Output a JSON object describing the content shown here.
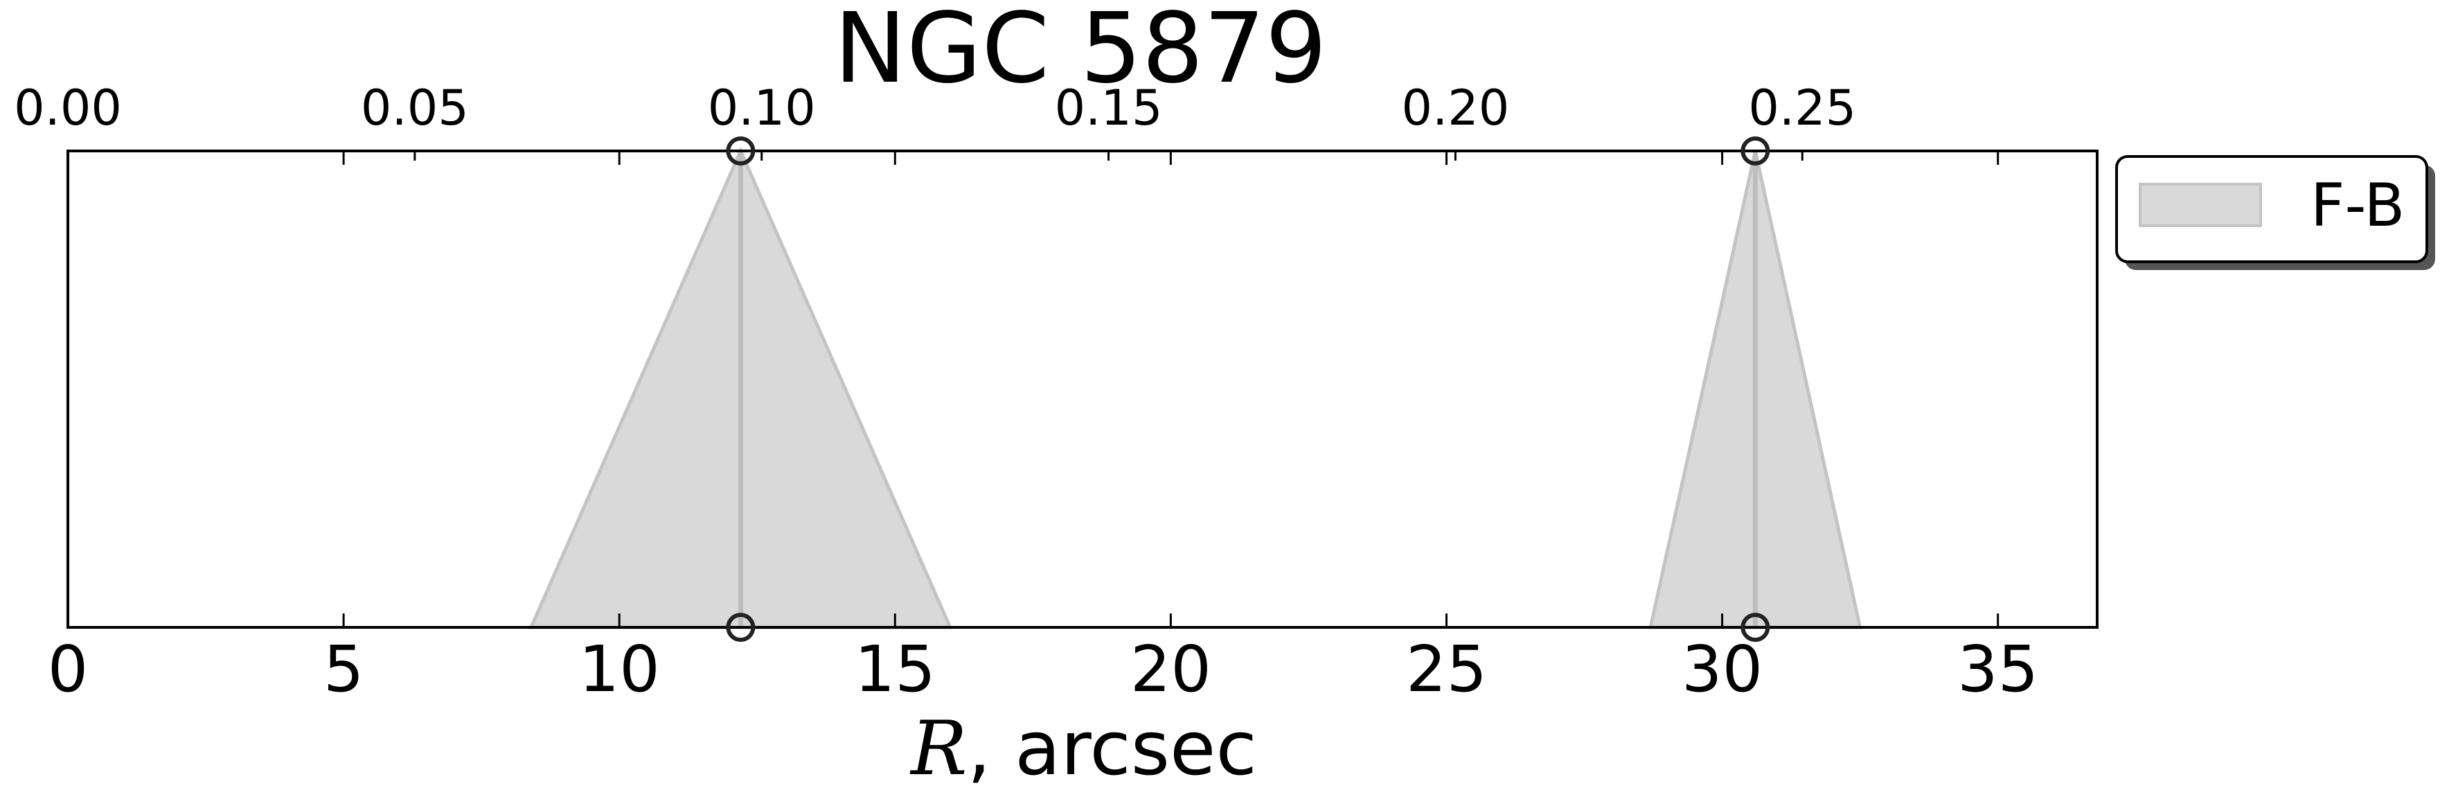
{
  "chart_data": {
    "type": "area",
    "title": "NGC 5879",
    "xlabel_var": "R",
    "xlabel_unit": ", arcsec",
    "xlim": [
      0,
      36.8
    ],
    "xticks": [
      0,
      5,
      10,
      15,
      20,
      25,
      30,
      35
    ],
    "top_xlim": [
      0,
      0.2925
    ],
    "top_xticks": [
      "0.00",
      "0.05",
      "0.10",
      "0.15",
      "0.20",
      "0.25"
    ],
    "top_xtick_values": [
      0,
      0.05,
      0.1,
      0.15,
      0.2,
      0.25
    ],
    "grid": false,
    "legend_position": "outside-top-right",
    "colors": {
      "fill": "#d9d9d9",
      "edge": "#c4c4c4",
      "center_line": "#bdbdbd",
      "marker_edge": "#222222"
    },
    "series": [
      {
        "name": "F-B",
        "features": [
          {
            "center": 12.2,
            "left": 8.4,
            "right": 16.0
          },
          {
            "center": 30.6,
            "left": 28.7,
            "right": 32.5
          }
        ]
      }
    ]
  }
}
